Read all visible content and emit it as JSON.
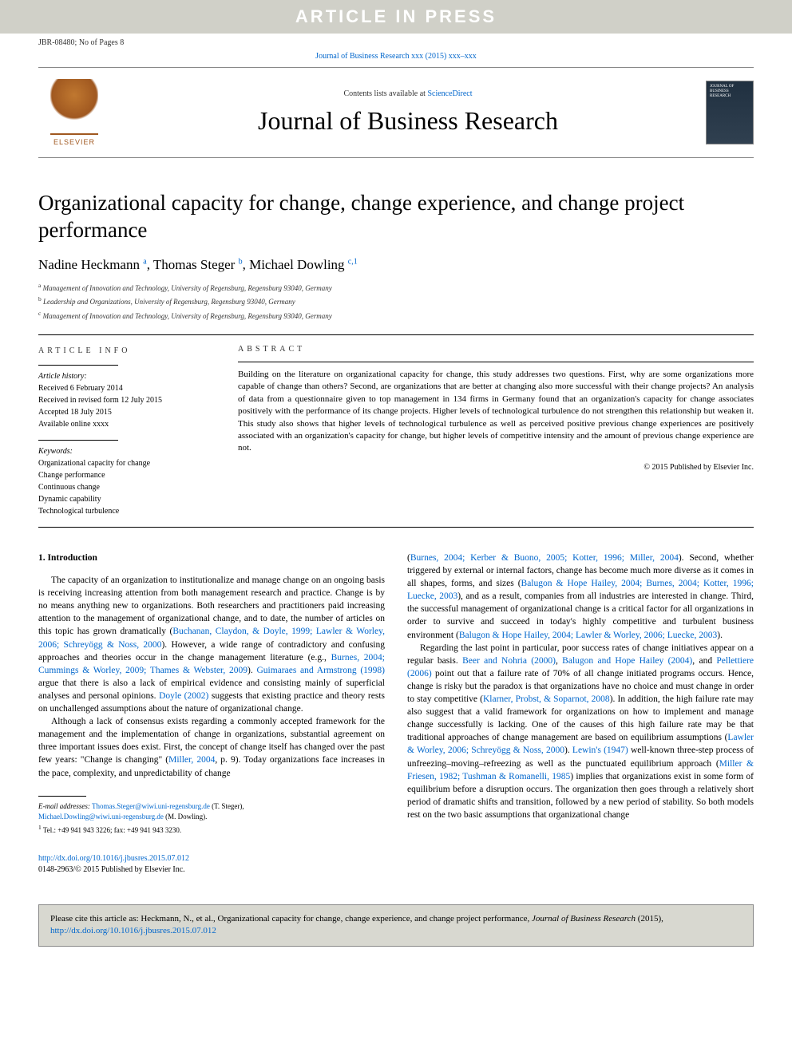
{
  "banner": "ARTICLE IN PRESS",
  "header": {
    "left": "JBR-08480; No of Pages 8",
    "journal_ref": "Journal of Business Research xxx (2015) xxx–xxx"
  },
  "masthead": {
    "contents_line_pre": "Contents lists available at ",
    "contents_link": "ScienceDirect",
    "journal_title": "Journal of Business Research",
    "elsevier": "ELSEVIER",
    "cover_text": "JOURNAL OF BUSINESS RESEARCH"
  },
  "article": {
    "title": "Organizational capacity for change, change experience, and change project performance",
    "authors_html": "Nadine Heckmann|a|, Thomas Steger|b|, Michael Dowling|c,1",
    "authors": [
      {
        "name": "Nadine Heckmann",
        "sup": "a"
      },
      {
        "name": "Thomas Steger",
        "sup": "b"
      },
      {
        "name": "Michael Dowling",
        "sup": "c,1"
      }
    ],
    "affiliations": [
      {
        "sup": "a",
        "text": "Management of Innovation and Technology, University of Regensburg, Regensburg 93040, Germany"
      },
      {
        "sup": "b",
        "text": "Leadership and Organizations, University of Regensburg, Regensburg 93040, Germany"
      },
      {
        "sup": "c",
        "text": "Management of Innovation and Technology, University of Regensburg, Regensburg 93040, Germany"
      }
    ]
  },
  "info": {
    "heading": "article info",
    "history_title": "Article history:",
    "history": [
      "Received 6 February 2014",
      "Received in revised form 12 July 2015",
      "Accepted 18 July 2015",
      "Available online xxxx"
    ],
    "keywords_title": "Keywords:",
    "keywords": [
      "Organizational capacity for change",
      "Change performance",
      "Continuous change",
      "Dynamic capability",
      "Technological turbulence"
    ]
  },
  "abstract": {
    "heading": "abstract",
    "text": "Building on the literature on organizational capacity for change, this study addresses two questions. First, why are some organizations more capable of change than others? Second, are organizations that are better at changing also more successful with their change projects? An analysis of data from a questionnaire given to top management in 134 firms in Germany found that an organization's capacity for change associates positively with the performance of its change projects. Higher levels of technological turbulence do not strengthen this relationship but weaken it. This study also shows that higher levels of technological turbulence as well as perceived positive previous change experiences are positively associated with an organization's capacity for change, but higher levels of competitive intensity and the amount of previous change experience are not.",
    "copyright": "© 2015 Published by Elsevier Inc."
  },
  "body": {
    "section_heading": "1. Introduction",
    "col1_p1": "The capacity of an organization to institutionalize and manage change on an ongoing basis is receiving increasing attention from both management research and practice. Change is by no means anything new to organizations. Both researchers and practitioners paid increasing attention to the management of organizational change, and to date, the number of articles on this topic has grown dramatically (Buchanan, Claydon, & Doyle, 1999; Lawler & Worley, 2006; Schreyögg & Noss, 2000). However, a wide range of contradictory and confusing approaches and theories occur in the change management literature (e.g., Burnes, 2004; Cummings & Worley, 2009; Thames & Webster, 2009). Guimaraes and Armstrong (1998) argue that there is also a lack of empirical evidence and consisting mainly of superficial analyses and personal opinions. Doyle (2002) suggests that existing practice and theory rests on unchallenged assumptions about the nature of organizational change.",
    "col1_p2": "Although a lack of consensus exists regarding a commonly accepted framework for the management and the implementation of change in organizations, substantial agreement on three important issues does exist. First, the concept of change itself has changed over the past few years: \"Change is changing\" (Miller, 2004, p. 9). Today organizations face increases in the pace, complexity, and unpredictability of change",
    "col2_p1": "(Burnes, 2004; Kerber & Buono, 2005; Kotter, 1996; Miller, 2004). Second, whether triggered by external or internal factors, change has become much more diverse as it comes in all shapes, forms, and sizes (Balugon & Hope Hailey, 2004; Burnes, 2004; Kotter, 1996; Luecke, 2003), and as a result, companies from all industries are interested in change. Third, the successful management of organizational change is a critical factor for all organizations in order to survive and succeed in today's highly competitive and turbulent business environment (Balugon & Hope Hailey, 2004; Lawler & Worley, 2006; Luecke, 2003).",
    "col2_p2": "Regarding the last point in particular, poor success rates of change initiatives appear on a regular basis. Beer and Nohria (2000), Balugon and Hope Hailey (2004), and Pellettiere (2006) point out that a failure rate of 70% of all change initiated programs occurs. Hence, change is risky but the paradox is that organizations have no choice and must change in order to stay competitive (Klarner, Probst, & Soparnot, 2008). In addition, the high failure rate may also suggest that a valid framework for organizations on how to implement and manage change successfully is lacking. One of the causes of this high failure rate may be that traditional approaches of change management are based on equilibrium assumptions (Lawler & Worley, 2006; Schreyögg & Noss, 2000). Lewin's (1947) well-known three-step process of unfreezing–moving–refreezing as well as the punctuated equilibrium approach (Miller & Friesen, 1982; Tushman & Romanelli, 1985) implies that organizations exist in some form of equilibrium before a disruption occurs. The organization then goes through a relatively short period of dramatic shifts and transition, followed by a new period of stability. So both models rest on the two basic assumptions that organizational change",
    "refs_in_text": {
      "c1p1_refs": [
        "Buchanan, Claydon, & Doyle, 1999; Lawler & Worley, 2006; Schreyögg & Noss, 2000",
        "Burnes, 2004; Cummings & Worley, 2009; Thames & Webster, 2009",
        "Guimaraes and Armstrong (1998)",
        "Doyle (2002)"
      ],
      "c1p2_refs": [
        "Miller, 2004"
      ],
      "c2p1_refs": [
        "Burnes, 2004; Kerber & Buono, 2005; Kotter, 1996; Miller, 2004",
        "Balugon & Hope Hailey, 2004; Burnes, 2004; Kotter, 1996; Luecke, 2003",
        "Balugon & Hope Hailey, 2004; Lawler & Worley, 2006; Luecke, 2003"
      ],
      "c2p2_refs": [
        "Beer and Nohria (2000)",
        "Balugon and Hope Hailey (2004)",
        "Pellettiere (2006)",
        "Klarner, Probst, & Soparnot, 2008",
        "Lawler & Worley, 2006; Schreyögg & Noss, 2000",
        "Lewin's (1947)",
        "Miller & Friesen, 1982; Tushman & Romanelli, 1985"
      ]
    }
  },
  "footnotes": {
    "email_label": "E-mail addresses:",
    "emails": [
      {
        "addr": "Thomas.Steger@wiwi.uni-regensburg.de",
        "who": "(T. Steger),"
      },
      {
        "addr": "Michael.Dowling@wiwi.uni-regensburg.de",
        "who": "(M. Dowling)."
      }
    ],
    "tel": "Tel.: +49 941 943 3226; fax: +49 941 943 3230.",
    "tel_sup": "1"
  },
  "doi": {
    "url": "http://dx.doi.org/10.1016/j.jbusres.2015.07.012",
    "issn_line": "0148-2963/© 2015 Published by Elsevier Inc."
  },
  "citation_box": {
    "pre": "Please cite this article as: Heckmann, N., et al., Organizational capacity for change, change experience, and change project performance, ",
    "journal": "Journal of Business Research",
    "year": " (2015), ",
    "url": "http://dx.doi.org/10.1016/j.jbusres.2015.07.012"
  },
  "colors": {
    "banner_bg": "#d0d0c8",
    "banner_fg": "#ffffff",
    "link": "#0066cc",
    "rule": "#000000",
    "elsevier": "#a05820",
    "cover_bg": "#203040",
    "citebox_bg": "#d8d8d0",
    "citebox_border": "#888888"
  }
}
